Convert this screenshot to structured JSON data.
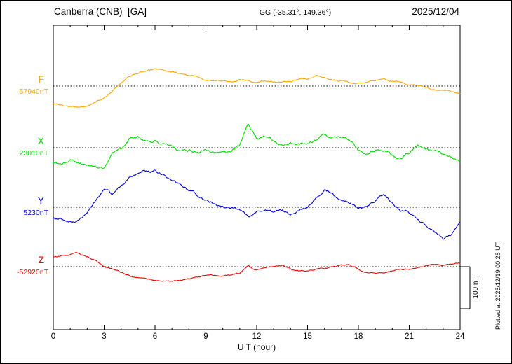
{
  "header": {
    "station_title": "Canberra (CNB)  [GA]",
    "coords": "GG (-35.31°, 149.36°)",
    "date": "2025/12/04"
  },
  "side_note": "Plotted at 2025/12/19 00:28 UT",
  "chart_data": {
    "type": "line",
    "title": "Canberra (CNB) [GA] magnetogram 2025/12/04",
    "xlabel": "U T (hour)",
    "x_range": [
      0,
      24
    ],
    "x_ticks": [
      0,
      3,
      6,
      9,
      12,
      15,
      18,
      21,
      24
    ],
    "x_minor_tick_step": 1,
    "x_step_hours": 0.5,
    "scale_bar_label": "100 nT",
    "scale_bar_nT": 100,
    "grid": "dotted horizontal baseline per channel",
    "series": [
      {
        "name": "F",
        "baseline_label": "57940nT",
        "color": "#ffa500",
        "noise_nT": 2,
        "offsets_nT": [
          -43,
          -47,
          -48,
          -50,
          -47,
          -40,
          -30,
          -13,
          7,
          23,
          32,
          37,
          40,
          38,
          35,
          30,
          25,
          22,
          18,
          17,
          17,
          15,
          18,
          15,
          13,
          17,
          13,
          12,
          13,
          15,
          17,
          23,
          17,
          13,
          12,
          8,
          7,
          8,
          13,
          20,
          13,
          8,
          3,
          0,
          -5,
          -10,
          -13,
          -17,
          -20
        ]
      },
      {
        "name": "X",
        "baseline_label": "23010nT",
        "color": "#00dd00",
        "noise_nT": 4,
        "offsets_nT": [
          -37,
          -42,
          -33,
          -38,
          -47,
          -53,
          -58,
          -15,
          -8,
          18,
          25,
          15,
          20,
          8,
          3,
          -5,
          0,
          -8,
          -3,
          -10,
          -5,
          -13,
          5,
          60,
          25,
          33,
          15,
          5,
          12,
          8,
          10,
          20,
          30,
          22,
          28,
          20,
          -5,
          -15,
          -8,
          -10,
          -20,
          -25,
          -12,
          5,
          -3,
          -10,
          -20,
          -30,
          -40
        ]
      },
      {
        "name": "Y",
        "baseline_label": "5230nT",
        "color": "#0000dd",
        "noise_nT": 3.5,
        "offsets_nT": [
          -25,
          -30,
          -33,
          -25,
          -8,
          17,
          45,
          28,
          50,
          72,
          82,
          87,
          90,
          78,
          67,
          55,
          42,
          28,
          17,
          8,
          3,
          0,
          -5,
          -25,
          -13,
          -8,
          -12,
          -8,
          -17,
          -8,
          0,
          17,
          38,
          28,
          12,
          5,
          -2,
          2,
          15,
          32,
          8,
          -8,
          -17,
          -28,
          -45,
          -58,
          -75,
          -62,
          -38
        ]
      },
      {
        "name": "Z",
        "baseline_label": "-52920nT",
        "color": "#ee0000",
        "noise_nT": 1.8,
        "offsets_nT": [
          25,
          28,
          30,
          30,
          23,
          13,
          -2,
          -8,
          -15,
          -22,
          -27,
          -30,
          -33,
          -35,
          -33,
          -30,
          -27,
          -22,
          -20,
          -17,
          -18,
          -17,
          -13,
          3,
          -7,
          -3,
          0,
          5,
          -5,
          -10,
          -7,
          -3,
          -3,
          0,
          5,
          7,
          -3,
          -10,
          -12,
          -13,
          -10,
          -8,
          -7,
          -3,
          2,
          3,
          3,
          7,
          8
        ]
      }
    ]
  }
}
